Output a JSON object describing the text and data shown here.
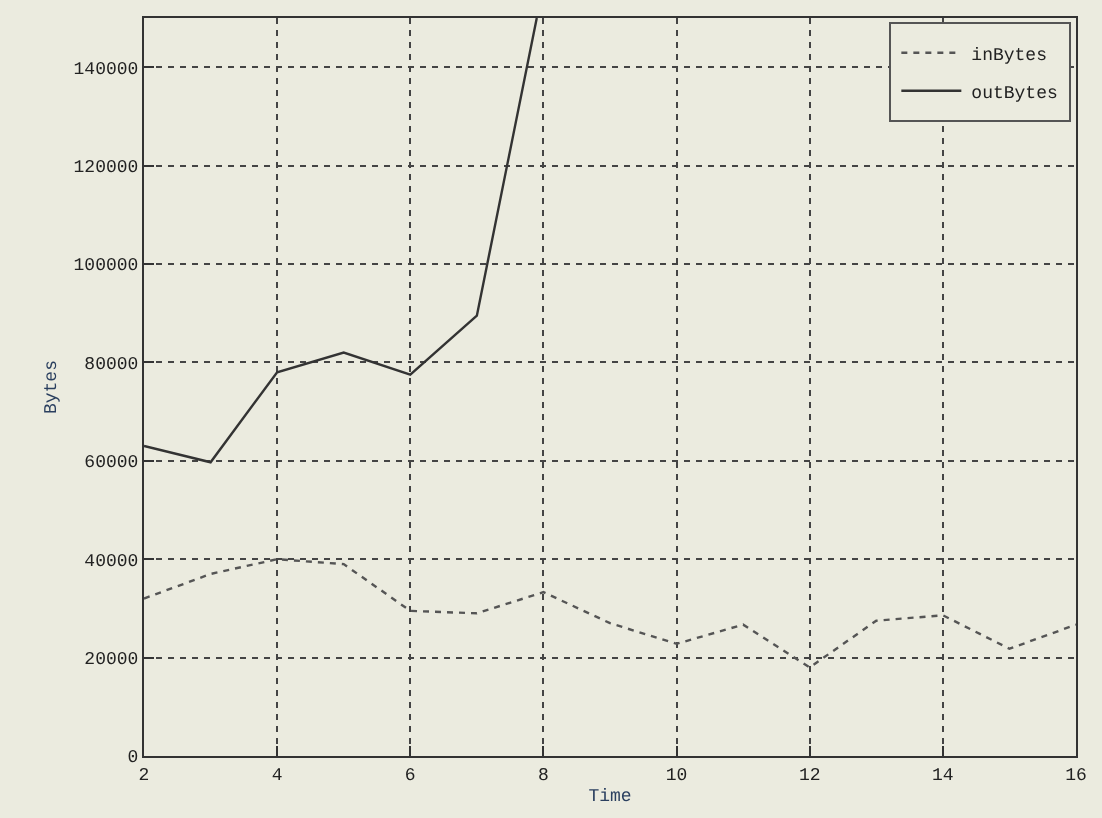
{
  "chart_data": {
    "type": "line",
    "xlabel": "Time",
    "ylabel": "Bytes",
    "xlim": [
      2,
      16
    ],
    "xticks": [
      2,
      4,
      6,
      8,
      10,
      12,
      14,
      16
    ],
    "ylim": [
      0,
      150000
    ],
    "yticks": [
      0,
      20000,
      40000,
      60000,
      80000,
      100000,
      120000,
      140000
    ],
    "grid": true,
    "legend": "top right",
    "series": [
      {
        "name": "inBytes",
        "color": "#555555",
        "line_style": "dotted",
        "x": [
          2,
          3,
          4,
          5,
          6,
          7,
          8,
          9,
          10,
          11,
          12,
          13,
          14,
          15,
          16
        ],
        "values": [
          32000,
          37000,
          40000,
          39000,
          29500,
          29000,
          33300,
          27000,
          22800,
          26700,
          18000,
          27500,
          28600,
          21800,
          26700
        ]
      },
      {
        "name": "outBytes",
        "color": "#333333",
        "line_style": "solid",
        "x": [
          2,
          3,
          4,
          5,
          6,
          7,
          7.9
        ],
        "values": [
          63000,
          59700,
          78000,
          82000,
          77500,
          89500,
          150000
        ]
      }
    ]
  }
}
